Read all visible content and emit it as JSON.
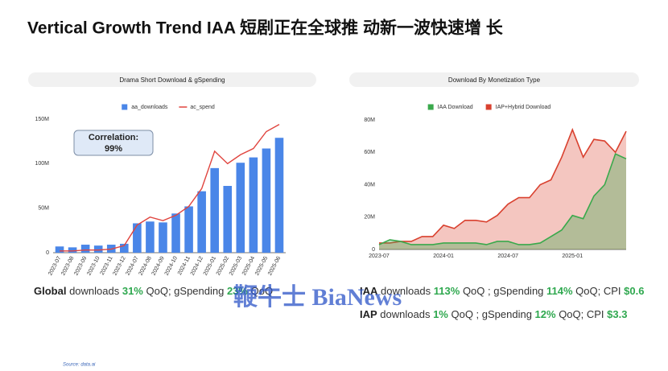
{
  "title": "Vertical Growth Trend   IAA 短剧正在全球推 动新一波快速增 长",
  "chart_data": [
    {
      "type": "combo",
      "title": "Drama Short Download & gSpending",
      "categories": [
        "2023-07",
        "2023-08",
        "2023-09",
        "2023-10",
        "2023-11",
        "2023-12",
        "2024-07",
        "2024-08",
        "2024-09",
        "2024-10",
        "2024-11",
        "2024-12",
        "2025-01",
        "2025-02",
        "2025-03",
        "2025-04",
        "2025-05",
        "2025-06"
      ],
      "series": [
        {
          "name": "aa_downloads",
          "color": "#4a86e8",
          "type": "bar",
          "values": [
            7,
            6,
            9,
            8,
            9,
            10,
            33,
            35,
            34,
            44,
            52,
            69,
            95,
            75,
            101,
            107,
            117,
            129
          ]
        },
        {
          "name": "ac_spend",
          "color": "#e0443e",
          "type": "line",
          "values": [
            2,
            2,
            3,
            3,
            4,
            8,
            31,
            40,
            36,
            42,
            52,
            72,
            114,
            100,
            110,
            117,
            136,
            144
          ]
        }
      ],
      "ylim": [
        0,
        150
      ],
      "yticks": [
        0,
        {
          "value": 50,
          "label": "50M"
        },
        {
          "value": 100,
          "label": "100M"
        },
        {
          "value": 150,
          "label": "150M"
        }
      ],
      "grid": false,
      "legend": "top",
      "annotation": [
        "Correlation:",
        "99%"
      ]
    },
    {
      "type": "area",
      "title": "Download By Monetization Type",
      "categories": [
        "2023-07",
        null,
        null,
        null,
        null,
        null,
        "2024-01",
        null,
        null,
        null,
        null,
        null,
        "2024-07",
        null,
        null,
        null,
        null,
        null,
        "2025-01",
        null,
        null,
        null,
        null,
        null
      ],
      "series": [
        {
          "name": "IAA Download",
          "color": "#3aa94c",
          "values": [
            3,
            6,
            5,
            3,
            3,
            3,
            4,
            4,
            4,
            4,
            3,
            5,
            5,
            3,
            3,
            4,
            8,
            12,
            21,
            19,
            33,
            40,
            59,
            56
          ]
        },
        {
          "name": "IAP+Hybrid Download",
          "color": "#d9412f",
          "values": [
            4,
            4,
            5,
            5,
            8,
            8,
            15,
            13,
            18,
            18,
            17,
            21,
            28,
            32,
            32,
            40,
            43,
            57,
            74,
            57,
            68,
            67,
            60,
            73
          ]
        }
      ],
      "ylim": [
        0,
        80
      ],
      "yticks": [
        {
          "value": 0,
          "label": "0"
        },
        {
          "value": 20,
          "label": "20M"
        },
        {
          "value": 40,
          "label": "40M"
        },
        {
          "value": 60,
          "label": "60M"
        },
        {
          "value": 80,
          "label": "80M"
        }
      ],
      "grid": false,
      "legend": "top"
    }
  ],
  "stats": {
    "left": [
      "Global",
      " downloads ",
      "31%",
      " QoQ; gSpending ",
      "23%",
      " QoQ"
    ],
    "right1": [
      "IAA",
      " downloads ",
      "113%",
      "  QoQ ; gSpending ",
      "114%",
      " QoQ; CPI ",
      "$0.6"
    ],
    "right2": [
      "IAP",
      " downloads ",
      "1%",
      "  QoQ ; gSpending ",
      "12%",
      "  QoQ; CPI ",
      "$3.3"
    ]
  },
  "watermark": "鞭牛士 BiaNews",
  "source": "Source: data.ai"
}
